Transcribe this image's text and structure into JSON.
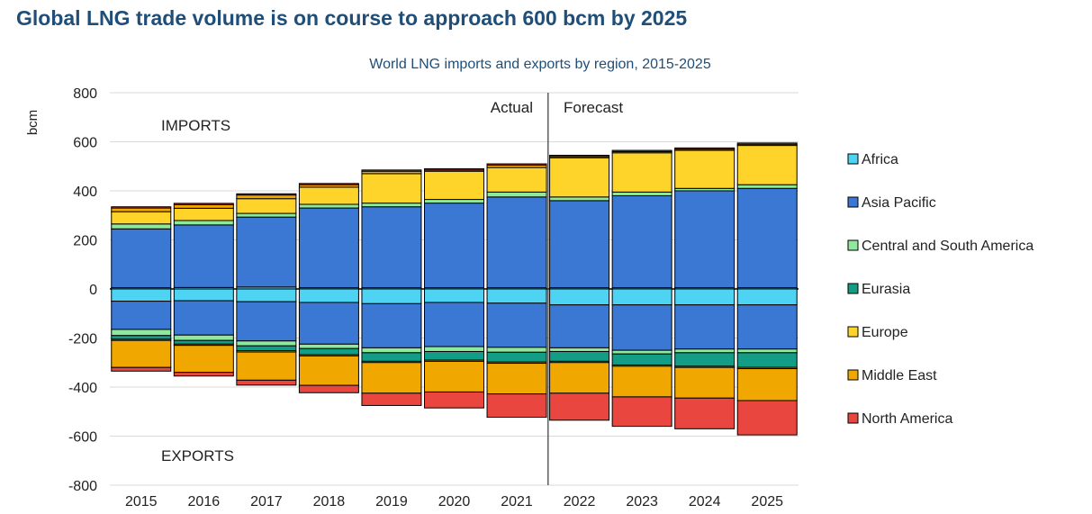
{
  "header": {
    "headline": "Global LNG trade volume is on course to approach 600 bcm by 2025"
  },
  "chart_data": {
    "type": "bar",
    "subtitle": "World LNG imports and exports by region, 2015-2025",
    "ylabel": "bcm",
    "xlabel": "",
    "ylim": [
      -800,
      800
    ],
    "yticks": [
      800,
      600,
      400,
      200,
      0,
      -200,
      -400,
      -600,
      -800
    ],
    "grid": true,
    "legend_position": "right",
    "annotations": {
      "imports": "IMPORTS",
      "exports": "EXPORTS",
      "actual": "Actual",
      "forecast": "Forecast"
    },
    "categories": [
      "2015",
      "2016",
      "2017",
      "2018",
      "2019",
      "2020",
      "2021",
      "2022",
      "2023",
      "2024",
      "2025"
    ],
    "series": [
      {
        "name": "Africa",
        "color": "#4fd3f3",
        "imports": [
          5,
          6,
          8,
          5,
          5,
          5,
          5,
          5,
          5,
          5,
          5
        ],
        "exports": [
          -50,
          -48,
          -52,
          -55,
          -60,
          -55,
          -58,
          -65,
          -65,
          -65,
          -65
        ]
      },
      {
        "name": "Asia Pacific",
        "color": "#3b78d4",
        "imports": [
          240,
          255,
          285,
          325,
          330,
          345,
          370,
          355,
          375,
          395,
          405
        ],
        "exports": [
          -115,
          -140,
          -160,
          -170,
          -180,
          -180,
          -180,
          -175,
          -185,
          -180,
          -180
        ]
      },
      {
        "name": "Central and South America",
        "color": "#8ee89d",
        "imports": [
          20,
          18,
          15,
          15,
          15,
          15,
          20,
          15,
          15,
          10,
          15
        ],
        "exports": [
          -25,
          -22,
          -20,
          -18,
          -20,
          -20,
          -20,
          -15,
          -15,
          -15,
          -15
        ]
      },
      {
        "name": "Eurasia",
        "color": "#139d86",
        "imports": [
          0,
          0,
          0,
          0,
          0,
          0,
          0,
          0,
          0,
          0,
          0
        ],
        "exports": [
          -15,
          -15,
          -20,
          -25,
          -35,
          -35,
          -40,
          -40,
          -45,
          -55,
          -60
        ]
      },
      {
        "name": "Europe",
        "color": "#ffd42a",
        "imports": [
          50,
          50,
          60,
          70,
          120,
          115,
          100,
          160,
          160,
          155,
          160
        ],
        "exports": [
          -5,
          -5,
          -5,
          -5,
          -5,
          -5,
          -5,
          -5,
          -5,
          -5,
          -5
        ]
      },
      {
        "name": "Middle East",
        "color": "#f0a800",
        "imports": [
          15,
          15,
          15,
          10,
          10,
          5,
          10,
          5,
          5,
          5,
          5
        ],
        "exports": [
          -110,
          -110,
          -115,
          -120,
          -125,
          -125,
          -125,
          -125,
          -125,
          -125,
          -130
        ]
      },
      {
        "name": "North America",
        "color": "#e8463f",
        "imports": [
          5,
          5,
          5,
          5,
          5,
          5,
          5,
          5,
          5,
          5,
          5
        ],
        "exports": [
          -15,
          -15,
          -20,
          -30,
          -50,
          -65,
          -95,
          -110,
          -120,
          -125,
          -140
        ]
      }
    ]
  }
}
